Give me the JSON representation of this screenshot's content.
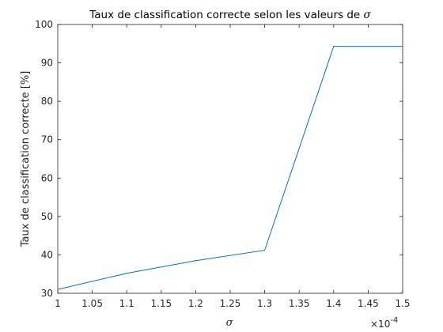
{
  "chart_data": {
    "type": "line",
    "title": "Taux de classification correcte selon les valeurs de ",
    "title_symbol": "σ",
    "xlabel": "σ",
    "ylabel": "Taux de classification correcte [%]",
    "x_exponent_base": "×10",
    "x_exponent_power": "-4",
    "xlim": [
      1.0,
      1.5
    ],
    "ylim": [
      30,
      100
    ],
    "xticks": [
      "1",
      "1.05",
      "1.1",
      "1.15",
      "1.2",
      "1.25",
      "1.3",
      "1.35",
      "1.4",
      "1.45",
      "1.5"
    ],
    "yticks": [
      "30",
      "40",
      "50",
      "60",
      "70",
      "80",
      "90",
      "100"
    ],
    "grid": false,
    "series": [
      {
        "x": [
          1.0,
          1.1,
          1.2,
          1.3,
          1.4,
          1.5
        ],
        "y": [
          31.0,
          35.2,
          38.5,
          41.2,
          94.3,
          94.3
        ],
        "color": "#0072bd"
      }
    ]
  }
}
